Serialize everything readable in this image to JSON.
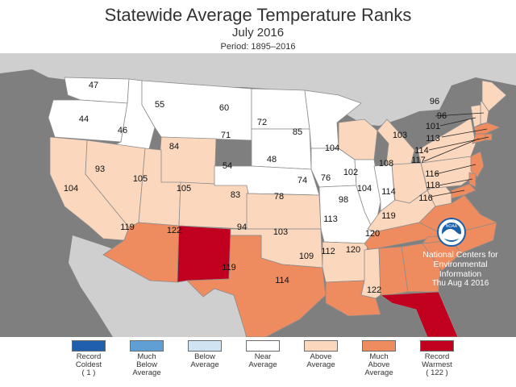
{
  "header": {
    "title": "Statewide Average Temperature Ranks",
    "subtitle": "July 2016",
    "period": "Period: 1895–2016"
  },
  "colors": {
    "ocean": "#7f7f7f",
    "neighbors": "#cfcfcf",
    "record_coldest": "#1f5fae",
    "much_below": "#5f9fd4",
    "below": "#cfe3f3",
    "near": "#ffffff",
    "above": "#fbd7bd",
    "much_above": "#ee8b5f",
    "record_warmest": "#c0001e"
  },
  "states": [
    {
      "id": "WA",
      "rank": "47",
      "category": "near"
    },
    {
      "id": "OR",
      "rank": "44",
      "category": "near"
    },
    {
      "id": "CA",
      "rank": "104",
      "category": "above"
    },
    {
      "id": "ID",
      "rank": "46",
      "category": "near"
    },
    {
      "id": "NV",
      "rank": "93",
      "category": "above"
    },
    {
      "id": "MT",
      "rank": "55",
      "category": "near"
    },
    {
      "id": "WY",
      "rank": "84",
      "category": "above"
    },
    {
      "id": "UT",
      "rank": "105",
      "category": "above"
    },
    {
      "id": "AZ",
      "rank": "119",
      "category": "much_above"
    },
    {
      "id": "CO",
      "rank": "105",
      "category": "above"
    },
    {
      "id": "NM",
      "rank": "122",
      "category": "record_warmest"
    },
    {
      "id": "ND",
      "rank": "60",
      "category": "near"
    },
    {
      "id": "SD",
      "rank": "71",
      "category": "near"
    },
    {
      "id": "NE",
      "rank": "54",
      "category": "near"
    },
    {
      "id": "KS",
      "rank": "83",
      "category": "above"
    },
    {
      "id": "OK",
      "rank": "94",
      "category": "above"
    },
    {
      "id": "TX",
      "rank": "119",
      "category": "much_above"
    },
    {
      "id": "MN",
      "rank": "72",
      "category": "near"
    },
    {
      "id": "IA",
      "rank": "48",
      "category": "near"
    },
    {
      "id": "MO",
      "rank": "78",
      "category": "near"
    },
    {
      "id": "AR",
      "rank": "103",
      "category": "above"
    },
    {
      "id": "LA",
      "rank": "114",
      "category": "much_above"
    },
    {
      "id": "WI",
      "rank": "85",
      "category": "above"
    },
    {
      "id": "IL",
      "rank": "74",
      "category": "near"
    },
    {
      "id": "MI",
      "rank": "104",
      "category": "above"
    },
    {
      "id": "IN",
      "rank": "76",
      "category": "near"
    },
    {
      "id": "OH",
      "rank": "102",
      "category": "above"
    },
    {
      "id": "KY",
      "rank": "98",
      "category": "above"
    },
    {
      "id": "TN",
      "rank": "113",
      "category": "much_above"
    },
    {
      "id": "MS",
      "rank": "109",
      "category": "above"
    },
    {
      "id": "AL",
      "rank": "112",
      "category": "much_above"
    },
    {
      "id": "GA",
      "rank": "120",
      "category": "much_above"
    },
    {
      "id": "FL",
      "rank": "122",
      "category": "record_warmest"
    },
    {
      "id": "SC",
      "rank": "120",
      "category": "much_above"
    },
    {
      "id": "NC",
      "rank": "119",
      "category": "much_above"
    },
    {
      "id": "VA",
      "rank": "114",
      "category": "much_above"
    },
    {
      "id": "WV",
      "rank": "104",
      "category": "above"
    },
    {
      "id": "PA",
      "rank": "108",
      "category": "above"
    },
    {
      "id": "NY",
      "rank": "103",
      "category": "above"
    },
    {
      "id": "ME",
      "rank": "96",
      "category": "above"
    },
    {
      "id": "NH",
      "rank": "96",
      "category": "above"
    },
    {
      "id": "VT",
      "rank": "101",
      "category": "above"
    },
    {
      "id": "MA",
      "rank": "113",
      "category": "much_above"
    },
    {
      "id": "RI",
      "rank": "114",
      "category": "much_above"
    },
    {
      "id": "CT",
      "rank": "117",
      "category": "much_above"
    },
    {
      "id": "NJ",
      "rank": "116",
      "category": "much_above"
    },
    {
      "id": "DE",
      "rank": "118",
      "category": "much_above"
    },
    {
      "id": "MD",
      "rank": "116",
      "category": "much_above"
    }
  ],
  "credit": {
    "logo_text": "NOAA",
    "line1": "National Centers for",
    "line2": "Environmental",
    "line3": "Information",
    "date": "Thu Aug  4 2016"
  },
  "legend": [
    {
      "line1": "Record",
      "line2": "Coldest",
      "line3": "( 1 )",
      "color_key": "record_coldest"
    },
    {
      "line1": "Much",
      "line2": "Below",
      "line3": "Average",
      "color_key": "much_below"
    },
    {
      "line1": "Below",
      "line2": "Average",
      "line3": "",
      "color_key": "below"
    },
    {
      "line1": "Near",
      "line2": "Average",
      "line3": "",
      "color_key": "near"
    },
    {
      "line1": "Above",
      "line2": "Average",
      "line3": "",
      "color_key": "above"
    },
    {
      "line1": "Much",
      "line2": "Above",
      "line3": "Average",
      "color_key": "much_above"
    },
    {
      "line1": "Record",
      "line2": "Warmest",
      "line3": "( 122 )",
      "color_key": "record_warmest"
    }
  ]
}
